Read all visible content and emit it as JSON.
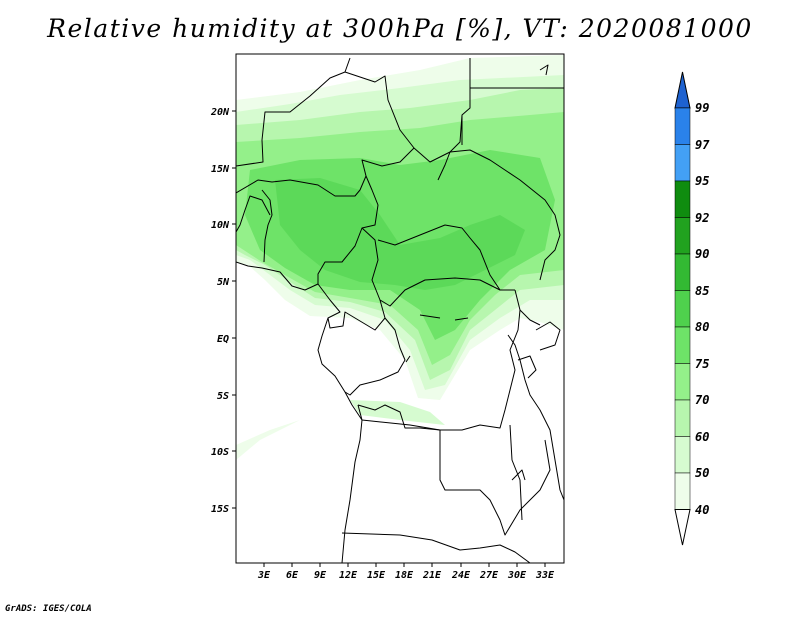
{
  "title": "Relative humidity at 300hPa [%], VT: 2020081000",
  "credit": "GrADS: IGES/COLA",
  "map": {
    "lat_labels": [
      "20N",
      "15N",
      "10N",
      "5N",
      "EQ",
      "5S",
      "10S",
      "15S"
    ],
    "lon_labels": [
      "3E",
      "6E",
      "9E",
      "12E",
      "15E",
      "18E",
      "21E",
      "24E",
      "27E",
      "30E",
      "33E"
    ]
  },
  "colorbar": {
    "labels": [
      "99",
      "97",
      "95",
      "92",
      "90",
      "85",
      "80",
      "75",
      "70",
      "60",
      "50",
      "40"
    ],
    "colors": [
      "#1e62d0",
      "#2a82ea",
      "#43a0f5",
      "#0f8c0f",
      "#21a21f",
      "#33b933",
      "#4fd14d",
      "#6ee368",
      "#94f08a",
      "#b7f6ae",
      "#d6fbd0",
      "#eefdea"
    ]
  }
}
